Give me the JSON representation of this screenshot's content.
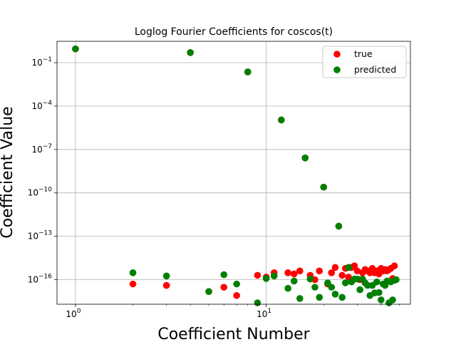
{
  "chart_data": {
    "type": "scatter",
    "title": "Loglog Fourier Coefficients for coscos(t)",
    "xlabel": "Coefficient Number",
    "ylabel": "Coefficient Value",
    "x_scale": "log",
    "y_scale": "log",
    "xlim": [
      0.8,
      57
    ],
    "ylim": [
      2e-18,
      3
    ],
    "grid": true,
    "legend_position": "top-right",
    "x_ticks": [
      {
        "value": 1,
        "base": "10",
        "exp": "0"
      },
      {
        "value": 10,
        "base": "10",
        "exp": "1"
      }
    ],
    "y_ticks": [
      {
        "value": 0.1,
        "base": "10",
        "exp": "−1"
      },
      {
        "value": 0.0001,
        "base": "10",
        "exp": "−4"
      },
      {
        "value": 1e-07,
        "base": "10",
        "exp": "−7"
      },
      {
        "value": 1e-10,
        "base": "10",
        "exp": "−10"
      },
      {
        "value": 1e-13,
        "base": "10",
        "exp": "−13"
      },
      {
        "value": 1e-16,
        "base": "10",
        "exp": "−16"
      }
    ],
    "series": [
      {
        "name": "true",
        "color": "#ff0000",
        "points": [
          [
            1,
            0.9
          ],
          [
            2,
            5e-17
          ],
          [
            3,
            4e-17
          ],
          [
            4,
            0.5
          ],
          [
            5,
            1.5e-17
          ],
          [
            6,
            3e-17
          ],
          [
            7,
            8e-18
          ],
          [
            8,
            0.023
          ],
          [
            9,
            2e-16
          ],
          [
            10,
            1.5e-16
          ],
          [
            11,
            3e-16
          ],
          [
            12,
            1.1e-05
          ],
          [
            13,
            3e-16
          ],
          [
            14,
            2.5e-16
          ],
          [
            15,
            4e-16
          ],
          [
            16,
            2.6e-08
          ],
          [
            17,
            2e-16
          ],
          [
            18,
            1e-16
          ],
          [
            19,
            4e-16
          ],
          [
            20,
            2.5e-10
          ],
          [
            21,
            5e-17
          ],
          [
            22,
            3e-16
          ],
          [
            23,
            7e-16
          ],
          [
            24,
            5e-13
          ],
          [
            25,
            2e-16
          ],
          [
            26,
            6e-16
          ],
          [
            27,
            1.5e-16
          ],
          [
            28,
            7e-16
          ],
          [
            29,
            9e-16
          ],
          [
            30,
            4e-16
          ],
          [
            31,
            1e-16
          ],
          [
            32,
            3e-16
          ],
          [
            33,
            5e-16
          ],
          [
            34,
            4e-16
          ],
          [
            35,
            3e-16
          ],
          [
            36,
            6e-16
          ],
          [
            37,
            3e-16
          ],
          [
            38,
            4e-16
          ],
          [
            39,
            2.5e-16
          ],
          [
            40,
            6e-16
          ],
          [
            41,
            4e-16
          ],
          [
            42,
            5e-16
          ],
          [
            43,
            4e-16
          ],
          [
            44,
            5e-16
          ],
          [
            45,
            6e-16
          ],
          [
            46,
            1.2e-16
          ],
          [
            47,
            9e-16
          ]
        ]
      },
      {
        "name": "predicted",
        "color": "#008000",
        "points": [
          [
            1,
            0.9
          ],
          [
            2,
            3e-16
          ],
          [
            3,
            1.8e-16
          ],
          [
            4,
            0.5
          ],
          [
            5,
            1.5e-17
          ],
          [
            6,
            2.2e-16
          ],
          [
            7,
            5e-17
          ],
          [
            8,
            0.023
          ],
          [
            9,
            2.5e-18
          ],
          [
            10,
            1.2e-16
          ],
          [
            11,
            1.8e-16
          ],
          [
            12,
            1.1e-05
          ],
          [
            13,
            2.5e-17
          ],
          [
            14,
            8e-17
          ],
          [
            15,
            5e-18
          ],
          [
            16,
            2.6e-08
          ],
          [
            17,
            1.1e-16
          ],
          [
            18,
            3e-17
          ],
          [
            19,
            6e-18
          ],
          [
            20,
            2.5e-10
          ],
          [
            21,
            6e-17
          ],
          [
            22,
            3e-17
          ],
          [
            23,
            1e-17
          ],
          [
            24,
            5e-13
          ],
          [
            25,
            6e-18
          ],
          [
            26,
            6e-17
          ],
          [
            27,
            7e-16
          ],
          [
            28,
            7e-17
          ],
          [
            29,
            1.1e-16
          ],
          [
            30,
            1.1e-16
          ],
          [
            31,
            2e-17
          ],
          [
            32,
            1.1e-16
          ],
          [
            33,
            6e-17
          ],
          [
            34,
            4e-17
          ],
          [
            35,
            8e-18
          ],
          [
            36,
            4e-17
          ],
          [
            37,
            1.2e-17
          ],
          [
            38,
            7e-17
          ],
          [
            39,
            1.3e-17
          ],
          [
            40,
            4e-18
          ],
          [
            41,
            5e-17
          ],
          [
            42,
            4e-17
          ],
          [
            43,
            8e-17
          ],
          [
            44,
            2.5e-18
          ],
          [
            45,
            7e-17
          ],
          [
            46,
            4e-18
          ],
          [
            47,
            9e-17
          ],
          [
            48,
            1e-16
          ]
        ]
      }
    ]
  }
}
